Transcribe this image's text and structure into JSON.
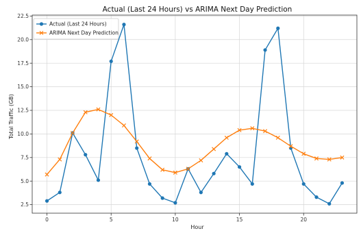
{
  "chart_data": {
    "type": "line",
    "title": "Actual (Last 24 Hours) vs ARIMA Next Day Prediction",
    "xlabel": "Hour",
    "ylabel": "Total Traffic (GB)",
    "xlim": [
      -1.15,
      24.15
    ],
    "ylim": [
      1.6,
      22.6
    ],
    "xticks": [
      0,
      5,
      10,
      15,
      20
    ],
    "yticks": [
      2.5,
      5.0,
      7.5,
      10.0,
      12.5,
      15.0,
      17.5,
      20.0,
      22.5
    ],
    "ytick_labels": [
      "2.5",
      "5.0",
      "7.5",
      "10.0",
      "12.5",
      "15.0",
      "17.5",
      "20.0",
      "22.5"
    ],
    "grid": true,
    "legend_position": "top-left",
    "series": [
      {
        "name": "Actual (Last 24 Hours)",
        "color": "#1f77b4",
        "marker": "circle",
        "x": [
          0,
          1,
          2,
          3,
          4,
          5,
          6,
          7,
          8,
          9,
          10,
          11,
          12,
          13,
          14,
          15,
          16,
          17,
          18,
          19,
          20,
          21,
          22,
          23
        ],
        "values": [
          2.9,
          3.8,
          10.1,
          7.8,
          5.1,
          17.7,
          21.6,
          8.5,
          4.7,
          3.2,
          2.7,
          6.3,
          3.8,
          5.8,
          7.9,
          6.5,
          4.7,
          18.9,
          21.2,
          8.5,
          4.7,
          3.3,
          2.6,
          4.8
        ]
      },
      {
        "name": "ARIMA Next Day Prediction",
        "color": "#ff7f0e",
        "marker": "x",
        "x": [
          0,
          1,
          2,
          3,
          4,
          5,
          6,
          7,
          8,
          9,
          10,
          11,
          12,
          13,
          14,
          15,
          16,
          17,
          18,
          19,
          20,
          21,
          22,
          23
        ],
        "values": [
          5.7,
          7.3,
          10.1,
          12.3,
          12.6,
          12.0,
          10.9,
          9.2,
          7.4,
          6.2,
          5.9,
          6.3,
          7.2,
          8.4,
          9.6,
          10.4,
          10.6,
          10.3,
          9.6,
          8.7,
          7.9,
          7.4,
          7.3,
          7.5
        ]
      }
    ]
  }
}
